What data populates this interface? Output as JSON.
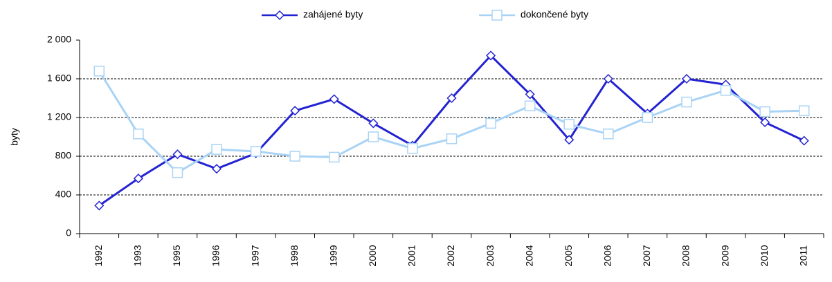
{
  "chart_data": {
    "type": "line",
    "y_label": "byty",
    "categories": [
      "1992",
      "1993",
      "1995",
      "1996",
      "1997",
      "1998",
      "1999",
      "2000",
      "2001",
      "2002",
      "2003",
      "2004",
      "2005",
      "2006",
      "2007",
      "2008",
      "2009",
      "2010",
      "2011"
    ],
    "series": [
      {
        "name": "zahájené byty",
        "color": "#2323d2",
        "marker": "diamond",
        "values": [
          290,
          570,
          820,
          670,
          830,
          1270,
          1390,
          1140,
          910,
          1400,
          1840,
          1440,
          970,
          1600,
          1240,
          1600,
          1540,
          1150,
          960
        ]
      },
      {
        "name": "dokončené byty",
        "color": "#a9d3f5",
        "marker": "square",
        "values": [
          1680,
          1030,
          630,
          870,
          850,
          800,
          790,
          1000,
          880,
          980,
          1140,
          1320,
          1130,
          1030,
          1200,
          1360,
          1480,
          1260,
          1270
        ]
      }
    ],
    "ylim": [
      0,
      2000
    ],
    "yticks": [
      0,
      400,
      800,
      {
        "value": 1200,
        "label": "1 200"
      },
      {
        "value": 1600,
        "label": "1 600"
      },
      {
        "value": 2000,
        "label": "2 000"
      }
    ],
    "grid": true,
    "legend": "top"
  }
}
